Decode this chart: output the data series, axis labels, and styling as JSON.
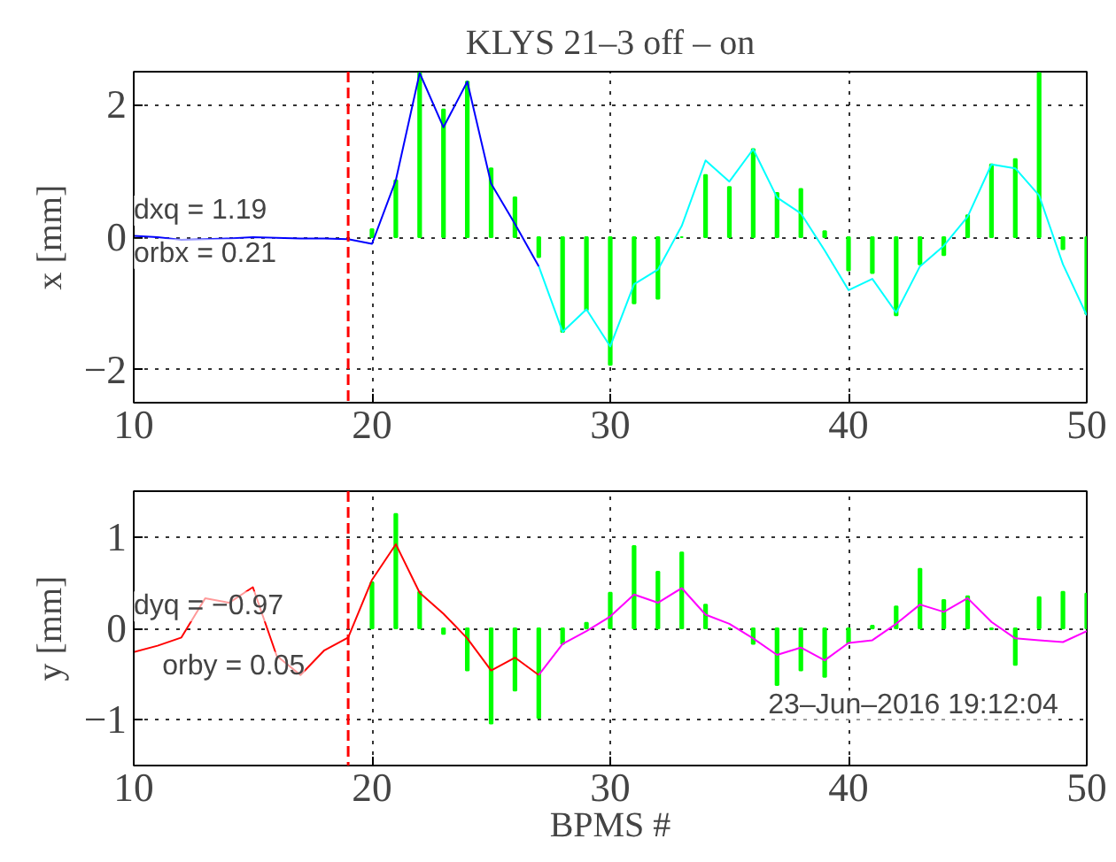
{
  "chart_data": [
    {
      "type": "line",
      "title": "KLYS 21–3 off – on",
      "ylabel": "x [mm]",
      "xlim": [
        10,
        50
      ],
      "xticks": [
        10,
        20,
        30,
        40,
        50
      ],
      "ylim": [
        -2.5,
        2.5
      ],
      "yticks": [
        -2,
        0,
        2
      ],
      "grid": true,
      "series": [
        {
          "type": "bar",
          "color": "#00ff00",
          "x": [
            20,
            21,
            22,
            23,
            24,
            25,
            26,
            27,
            28,
            29,
            30,
            31,
            32,
            33,
            34,
            35,
            36,
            37,
            38,
            39,
            40,
            41,
            42,
            43,
            44,
            45,
            46,
            47,
            48,
            49,
            50
          ],
          "values": [
            0.12,
            0.86,
            2.48,
            1.93,
            2.35,
            1.04,
            0.6,
            -0.3,
            -1.43,
            -1.1,
            -1.93,
            -1.0,
            -0.93,
            0.0,
            0.94,
            0.76,
            1.33,
            0.67,
            0.73,
            0.09,
            -0.5,
            -0.54,
            -1.18,
            -0.41,
            -0.27,
            0.33,
            1.1,
            1.18,
            2.48,
            -0.18,
            -1.16
          ]
        },
        {
          "color": "#0000ff",
          "x": [
            10,
            11,
            12,
            13,
            14,
            15,
            16,
            17,
            18,
            19,
            20,
            21,
            22,
            23,
            24,
            25,
            26,
            27
          ],
          "values": [
            0.02,
            0.0,
            -0.04,
            -0.03,
            -0.02,
            0.0,
            -0.01,
            -0.02,
            -0.02,
            -0.03,
            -0.1,
            0.86,
            2.48,
            1.66,
            2.35,
            0.81,
            0.2,
            -0.44
          ]
        },
        {
          "color": "#00ffff",
          "x": [
            27,
            28,
            29,
            30,
            31,
            32,
            33,
            34,
            35,
            36,
            37,
            38,
            39,
            40,
            41,
            42,
            43,
            44,
            45,
            46,
            47,
            48,
            49,
            50
          ],
          "values": [
            -0.44,
            -1.43,
            -1.09,
            -1.65,
            -0.71,
            -0.49,
            0.17,
            1.16,
            0.84,
            1.33,
            0.6,
            0.36,
            -0.2,
            -0.8,
            -0.63,
            -1.14,
            -0.44,
            -0.13,
            0.31,
            1.1,
            1.04,
            0.63,
            -0.41,
            -1.18
          ]
        }
      ],
      "ref_lines": [
        {
          "axis": "x",
          "value": 19,
          "color": "#ff0000",
          "line_style": "dashed"
        }
      ],
      "annotations": [
        "dxq  = 1.19",
        "orbx = 0.21"
      ]
    },
    {
      "type": "line",
      "xlabel": "BPMS #",
      "ylabel": "y [mm]",
      "xlim": [
        10,
        50
      ],
      "xticks": [
        10,
        20,
        30,
        40,
        50
      ],
      "ylim": [
        -1.5,
        1.5
      ],
      "yticks": [
        -1,
        0,
        1
      ],
      "grid": true,
      "series": [
        {
          "type": "bar",
          "color": "#00ff00",
          "x": [
            20,
            21,
            22,
            23,
            24,
            25,
            26,
            27,
            28,
            29,
            30,
            31,
            32,
            33,
            34,
            35,
            36,
            37,
            38,
            39,
            40,
            41,
            42,
            43,
            44,
            45,
            46,
            47,
            48,
            49,
            50
          ],
          "values": [
            0.5,
            1.25,
            0.4,
            -0.06,
            -0.46,
            -1.04,
            -0.68,
            -0.98,
            -0.17,
            0.06,
            0.39,
            0.9,
            0.62,
            0.83,
            0.26,
            0.0,
            -0.17,
            -0.62,
            -0.46,
            -0.53,
            -0.16,
            0.03,
            0.24,
            0.65,
            0.31,
            0.35,
            -0.01,
            -0.4,
            0.34,
            0.4,
            0.38
          ]
        },
        {
          "color": "#ff0000",
          "x": [
            10,
            11,
            12,
            13,
            14,
            15,
            16,
            17,
            18,
            19,
            20,
            21,
            22,
            23,
            24,
            25,
            26,
            27
          ],
          "values": [
            -0.26,
            -0.19,
            -0.1,
            0.33,
            0.28,
            0.45,
            -0.3,
            -0.51,
            -0.24,
            -0.1,
            0.53,
            0.92,
            0.39,
            0.16,
            -0.11,
            -0.46,
            -0.32,
            -0.51
          ]
        },
        {
          "color": "#ff00ff",
          "x": [
            27,
            28,
            29,
            30,
            31,
            32,
            33,
            34,
            35,
            36,
            37,
            38,
            39,
            40,
            41,
            42,
            43,
            44,
            45,
            46,
            47,
            48,
            49,
            50
          ],
          "values": [
            -0.51,
            -0.17,
            -0.03,
            0.13,
            0.37,
            0.28,
            0.44,
            0.15,
            0.05,
            -0.11,
            -0.29,
            -0.21,
            -0.35,
            -0.16,
            -0.13,
            0.05,
            0.26,
            0.18,
            0.33,
            0.07,
            -0.11,
            -0.13,
            -0.15,
            -0.03
          ]
        }
      ],
      "ref_lines": [
        {
          "axis": "x",
          "value": 19,
          "color": "#ff0000",
          "line_style": "dashed"
        }
      ],
      "annotations": [
        "dyq = −0.97",
        "orby = 0.05",
        "23–Jun–2016 19:12:04"
      ]
    }
  ]
}
